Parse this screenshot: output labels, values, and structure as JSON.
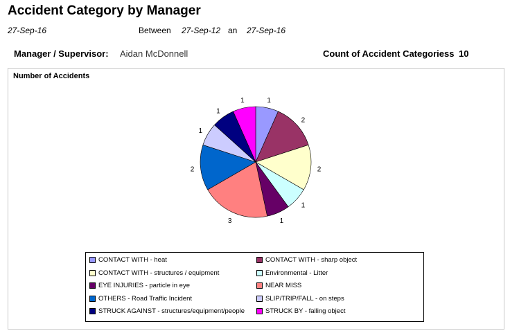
{
  "header": {
    "title": "Accident Category by Manager",
    "report_date": "27-Sep-16",
    "between_label": "Between",
    "from_date": "27-Sep-12",
    "and_label": "an",
    "to_date": "27-Sep-16"
  },
  "manager": {
    "label": "Manager / Supervisor:",
    "name": "Aidan McDonnell",
    "count_label": "Count of Accident Categoriess",
    "count": "10"
  },
  "chart_data": {
    "type": "pie",
    "title": "Number of Accidents",
    "legend_position": "bottom",
    "slices": [
      {
        "name": "CONTACT WITH - heat",
        "value": 1,
        "color": "#9999ff"
      },
      {
        "name": "CONTACT WITH - sharp object",
        "value": 2,
        "color": "#993366"
      },
      {
        "name": "CONTACT WITH - structures / equipment",
        "value": 2,
        "color": "#ffffcc"
      },
      {
        "name": "Environmental - Litter",
        "value": 1,
        "color": "#ccffff"
      },
      {
        "name": "EYE INJURIES - particle in eye",
        "value": 1,
        "color": "#660066"
      },
      {
        "name": "NEAR MISS",
        "value": 3,
        "color": "#ff8080"
      },
      {
        "name": "OTHERS - Road Traffic Incident",
        "value": 2,
        "color": "#0066cc"
      },
      {
        "name": "SLIP/TRIP/FALL - on steps",
        "value": 1,
        "color": "#ccccff"
      },
      {
        "name": "STRUCK AGAINST - structures/equipment/people",
        "value": 1,
        "color": "#000080"
      },
      {
        "name": "STRUCK BY - falling object",
        "value": 1,
        "color": "#ff00ff"
      }
    ]
  }
}
